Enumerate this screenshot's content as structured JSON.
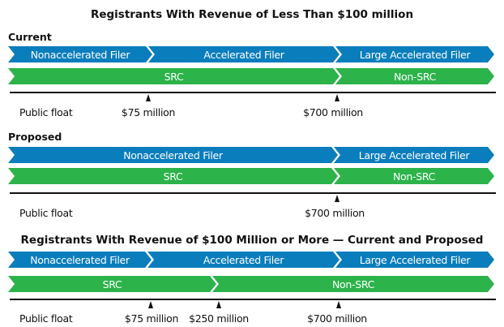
{
  "title_top": "Registrants With Revenue of Less Than $100 million",
  "current": {
    "label": "Current",
    "filers": [
      "Nonaccelerated Filer",
      "Accelerated Filer",
      "Large Accelerated Filer"
    ],
    "src": [
      "SRC",
      "Non-SRC"
    ],
    "axis_label": "Public float",
    "thresholds": [
      "$75 million",
      "$700 million"
    ]
  },
  "proposed": {
    "label": "Proposed",
    "filers": [
      "Nonaccelerated Filer",
      "Large Accelerated Filer"
    ],
    "src": [
      "SRC",
      "Non-SRC"
    ],
    "axis_label": "Public float",
    "thresholds": [
      "$700 million"
    ]
  },
  "title_bottom": "Registrants With Revenue of $100 Million or More — Current and Proposed",
  "large": {
    "filers": [
      "Nonaccelerated Filer",
      "Accelerated Filer",
      "Large Accelerated Filer"
    ],
    "src": [
      "SRC",
      "Non-SRC"
    ],
    "axis_label": "Public float",
    "thresholds": [
      "$75 million",
      "$250 million",
      "$700 million"
    ]
  },
  "colors": {
    "filer": "#0a7dbd",
    "src": "#2cb34a"
  }
}
